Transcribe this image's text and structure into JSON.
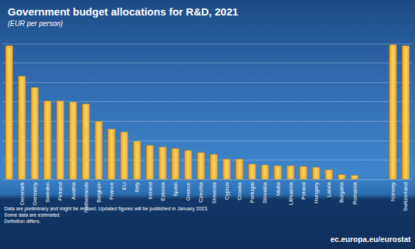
{
  "chart_data": {
    "type": "bar",
    "title": "Government budget allocations for R&D, 2021",
    "subtitle": "(EUR per person)",
    "categories": [
      null,
      "Denmark",
      "Germany",
      "Sweden",
      "Finland",
      "Austria",
      "Netherlands",
      "Belgium",
      "France",
      "EU",
      "Italy",
      "Ireland",
      "Estonia",
      "Spain",
      "Greece",
      "Czechia",
      "Slovenia",
      "Cyprus",
      "Croatia",
      "Portugal",
      "Slovakia",
      "Malta",
      "Lithuania",
      "Poland",
      "Hungary",
      "Latvia",
      "Bulgaria",
      "Romania",
      null,
      null,
      "Norway",
      "Switzerland"
    ],
    "values": [
      690,
      533,
      474,
      405,
      405,
      400,
      390,
      300,
      260,
      245,
      197,
      176,
      168,
      160,
      150,
      139,
      130,
      105,
      105,
      80,
      75,
      71,
      71,
      67,
      63,
      50,
      25,
      21,
      null,
      null,
      695,
      690
    ],
    "color": "#f5a81c",
    "ylim": [
      0,
      700
    ],
    "yticks": [
      0,
      100,
      200,
      300,
      400,
      500,
      600,
      700
    ],
    "grid": true,
    "tick_labels": "x",
    "notes": [
      "Data are preliminary and might be revised. Updated figures will be published in January 2023.",
      "Some data are estimated.",
      "Definition differs."
    ],
    "source": "ec.europa.eu/eurostat"
  }
}
